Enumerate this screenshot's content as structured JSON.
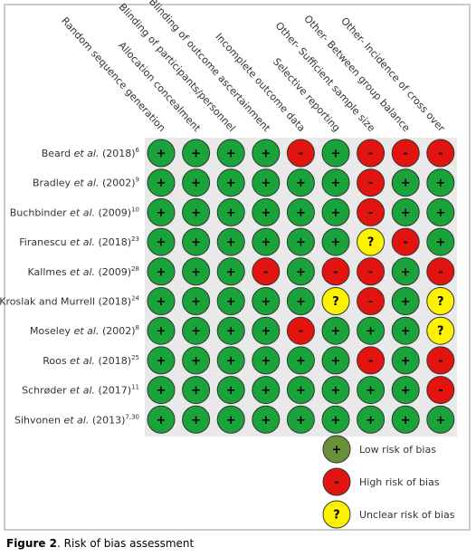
{
  "columns": [
    "Random sequence generation",
    "Allocation concealment",
    "Blinding of participants/personnel",
    "Blinding of outcome ascertainment",
    "Incomplete outcome data",
    "Selective reporting",
    "Other- Sufficient sample size",
    "Other- Between group balance",
    "Other- Incidence of cross over"
  ],
  "rows": [
    {
      "name": "Beard",
      "etal": "et al.",
      "year": "(2018)",
      "ref": "6",
      "ratings": [
        "+",
        "+",
        "+",
        "+",
        "-",
        "+",
        "-",
        "-",
        "-"
      ]
    },
    {
      "name": "Bradley",
      "etal": "et al.",
      "year": "(2002)",
      "ref": "9",
      "ratings": [
        "+",
        "+",
        "+",
        "+",
        "+",
        "+",
        "-",
        "+",
        "+"
      ]
    },
    {
      "name": "Buchbinder",
      "etal": "et al.",
      "year": "(2009)",
      "ref": "10",
      "ratings": [
        "+",
        "+",
        "+",
        "+",
        "+",
        "+",
        "-",
        "+",
        "+"
      ]
    },
    {
      "name": "Firanescu",
      "etal": "et al.",
      "year": "(2018)",
      "ref": "23",
      "ratings": [
        "+",
        "+",
        "+",
        "+",
        "+",
        "+",
        "?",
        "-",
        "+"
      ]
    },
    {
      "name": "Kallmes",
      "etal": "et al.",
      "year": "(2009)",
      "ref": "28",
      "ratings": [
        "+",
        "+",
        "+",
        "-",
        "+",
        "-",
        "-",
        "+",
        "-"
      ]
    },
    {
      "name": "Kroslak and Murrell",
      "year": "(2018)",
      "ref": "24",
      "ratings": [
        "+",
        "+",
        "+",
        "+",
        "+",
        "?",
        "-",
        "+",
        "?"
      ]
    },
    {
      "name": "Moseley",
      "etal": "et al.",
      "year": "(2002)",
      "ref": "8",
      "ratings": [
        "+",
        "+",
        "+",
        "+",
        "-",
        "+",
        "+",
        "+",
        "?"
      ]
    },
    {
      "name": "Roos",
      "etal": "et al.",
      "year": "(2018)",
      "ref": "25",
      "ratings": [
        "+",
        "+",
        "+",
        "+",
        "+",
        "+",
        "-",
        "+",
        "-"
      ]
    },
    {
      "name": "Schrøder",
      "etal": "et al.",
      "year": "(2017)",
      "ref": "11",
      "ratings": [
        "+",
        "+",
        "+",
        "+",
        "+",
        "+",
        "+",
        "+",
        "-"
      ]
    },
    {
      "name": "Sihvonen",
      "etal": "et al.",
      "year": "(2013)",
      "ref": "7,30",
      "ratings": [
        "+",
        "+",
        "+",
        "+",
        "+",
        "+",
        "+",
        "+",
        "+"
      ]
    }
  ],
  "legend": [
    {
      "symbol": "+",
      "label": "Low risk of bias"
    },
    {
      "symbol": "-",
      "label": "High risk of bias"
    },
    {
      "symbol": "?",
      "label": "Unclear risk of bias"
    }
  ],
  "caption": {
    "label": "Figure 2",
    "text": ". Risk of bias assessment"
  }
}
